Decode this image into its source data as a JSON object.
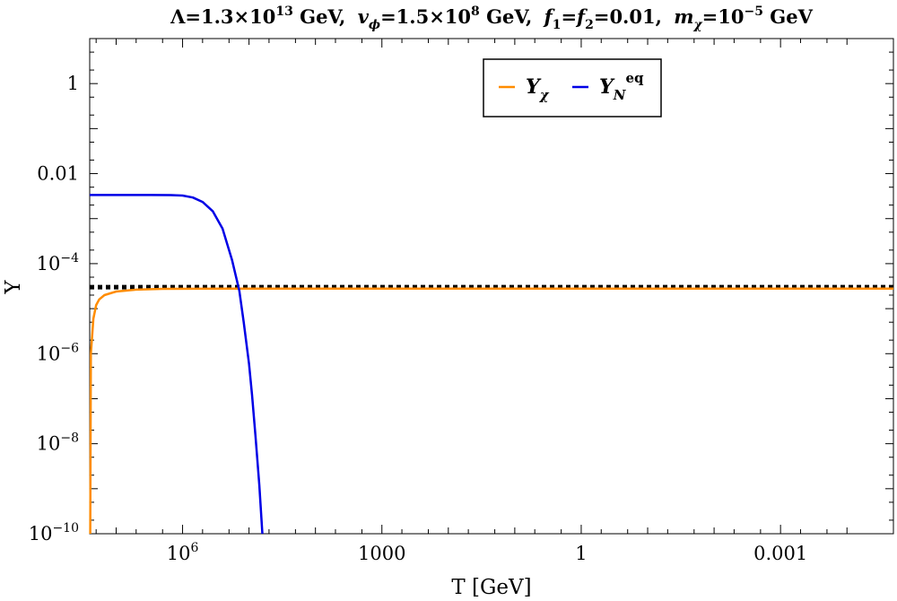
{
  "chart_data": {
    "type": "line",
    "title_parts": {
      "lambda": "Λ=1.3×10",
      "lambda_exp": "13",
      "lambda_unit": " GeV,",
      "v": "v",
      "v_sub": "ϕ",
      "v_val": "=1.5×10",
      "v_exp": "8",
      "v_unit": " GeV,",
      "f1": "f",
      "f1_sub": "1",
      "f_eq": "=",
      "f2": "f",
      "f2_sub": "2",
      "f_val": "=0.01,",
      "m": "m",
      "m_sub": "χ",
      "m_val": "=10",
      "m_exp": "−5",
      "m_unit": " GeV"
    },
    "xlabel": "T [GeV]",
    "ylabel": "Y",
    "x_scale": "log-reversed",
    "y_scale": "log",
    "xlim": [
      25000000.0,
      2e-05
    ],
    "ylim": [
      1e-10,
      10
    ],
    "x_ticks": [
      {
        "value": 1000000.0,
        "base": "10",
        "exp": "6"
      },
      {
        "value": 1000,
        "label": "1000"
      },
      {
        "value": 1,
        "label": "1"
      },
      {
        "value": 0.001,
        "label": "0.001"
      }
    ],
    "y_ticks": [
      {
        "value": 1,
        "label": "1"
      },
      {
        "value": 0.01,
        "label": "0.01"
      },
      {
        "value": 0.0001,
        "base": "10",
        "exp": "−4"
      },
      {
        "value": 1e-06,
        "base": "10",
        "exp": "−6"
      },
      {
        "value": 1e-08,
        "base": "10",
        "exp": "−8"
      },
      {
        "value": 1e-10,
        "base": "10",
        "exp": "−10"
      }
    ],
    "legend_position": "top-center",
    "series": [
      {
        "name": "Y_χ",
        "legend_main": "Y",
        "legend_sub": "χ",
        "color": "#FF8C00",
        "points": [
          [
            24500000.0,
            1e-10
          ],
          [
            24000000.0,
            1e-06
          ],
          [
            22000000.0,
            6e-06
          ],
          [
            20000000.0,
            1.2e-05
          ],
          [
            18000000.0,
            1.6e-05
          ],
          [
            15000000.0,
            2e-05
          ],
          [
            10000000.0,
            2.4e-05
          ],
          [
            5000000.0,
            2.65e-05
          ],
          [
            2000000.0,
            2.75e-05
          ],
          [
            100000.0,
            2.8e-05
          ],
          [
            1000.0,
            2.8e-05
          ],
          [
            1,
            2.8e-05
          ],
          [
            0.001,
            2.8e-05
          ],
          [
            2e-05,
            2.8e-05
          ]
        ]
      },
      {
        "name": "Y_N^eq",
        "legend_main": "Y",
        "legend_sub": "N",
        "legend_sup": "eq",
        "color": "#0000E6",
        "points": [
          [
            25000000.0,
            0.00334
          ],
          [
            3000000.0,
            0.00334
          ],
          [
            1500000.0,
            0.00333
          ],
          [
            1000000.0,
            0.00325
          ],
          [
            700000.0,
            0.00295
          ],
          [
            500000.0,
            0.00235
          ],
          [
            350000.0,
            0.00145
          ],
          [
            250000.0,
            0.0006
          ],
          [
            180000.0,
            0.00012
          ],
          [
            140000.0,
            2.5e-05
          ],
          [
            120000.0,
            5e-06
          ],
          [
            100000.0,
            6e-07
          ],
          [
            90000.0,
            1.2e-07
          ],
          [
            80000.0,
            1.5e-08
          ],
          [
            70000.0,
            1.2e-09
          ],
          [
            63000.0,
            1e-10
          ]
        ]
      }
    ],
    "reference_line": {
      "y": 3e-05,
      "style": "dotted",
      "color": "#000000",
      "x_from": 25000000.0,
      "x_to": 2e-05
    }
  }
}
